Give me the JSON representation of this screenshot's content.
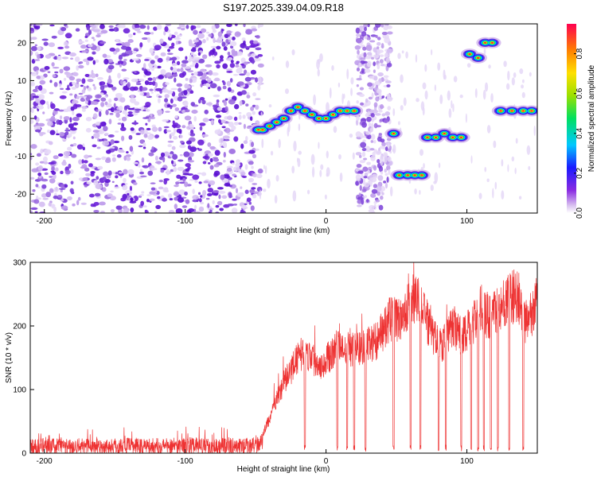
{
  "title": "S197.2025.339.04.09.R18",
  "chart_data": [
    {
      "type": "heatmap",
      "title": "S197.2025.339.04.09.R18",
      "xlabel": "Height of straight line (km)",
      "ylabel": "Frequency (Hz)",
      "xlim": [
        -210,
        150
      ],
      "ylim": [
        -25,
        25
      ],
      "xticks": [
        -200,
        -100,
        0,
        100
      ],
      "xtick_labels": [
        "-200",
        "-100",
        "0",
        "100"
      ],
      "yticks": [
        -20,
        -10,
        0,
        10,
        20
      ],
      "ytick_labels": [
        "-20",
        "-10",
        "0",
        "10",
        "20"
      ],
      "colorbar": {
        "label": "Normalized spectral amplitude",
        "range": [
          0,
          0.95
        ],
        "ticks": [
          0.0,
          0.2,
          0.4,
          0.6,
          0.8
        ],
        "tick_labels": [
          "0.0",
          "0.2",
          "0.4",
          "0.6",
          "0.8"
        ]
      },
      "noise_region_km": [
        -210,
        -50
      ],
      "tone_track": [
        {
          "km": -48,
          "hz": -3
        },
        {
          "km": -45,
          "hz": -3
        },
        {
          "km": -40,
          "hz": -2
        },
        {
          "km": -35,
          "hz": -1
        },
        {
          "km": -30,
          "hz": 0
        },
        {
          "km": -25,
          "hz": 2
        },
        {
          "km": -20,
          "hz": 3
        },
        {
          "km": -15,
          "hz": 2
        },
        {
          "km": -10,
          "hz": 1
        },
        {
          "km": -5,
          "hz": 0
        },
        {
          "km": 0,
          "hz": 0
        },
        {
          "km": 5,
          "hz": 1
        },
        {
          "km": 10,
          "hz": 2
        },
        {
          "km": 15,
          "hz": 2
        },
        {
          "km": 20,
          "hz": 2
        },
        {
          "km": 48,
          "hz": -4
        },
        {
          "km": 52,
          "hz": -15
        },
        {
          "km": 58,
          "hz": -15
        },
        {
          "km": 63,
          "hz": -15
        },
        {
          "km": 68,
          "hz": -15
        },
        {
          "km": 72,
          "hz": -5
        },
        {
          "km": 78,
          "hz": -5
        },
        {
          "km": 84,
          "hz": -4
        },
        {
          "km": 90,
          "hz": -5
        },
        {
          "km": 96,
          "hz": -5
        },
        {
          "km": 102,
          "hz": 17
        },
        {
          "km": 108,
          "hz": 16
        },
        {
          "km": 113,
          "hz": 20
        },
        {
          "km": 118,
          "hz": 20
        },
        {
          "km": 124,
          "hz": 2
        },
        {
          "km": 132,
          "hz": 2
        },
        {
          "km": 140,
          "hz": 2
        },
        {
          "km": 146,
          "hz": 2
        }
      ]
    },
    {
      "type": "line",
      "xlabel": "Height of straight line (km)",
      "ylabel": "SNR (10 * v/v)",
      "xlim": [
        -210,
        150
      ],
      "ylim": [
        0,
        300
      ],
      "xticks": [
        -200,
        -100,
        0,
        100
      ],
      "xtick_labels": [
        "-200",
        "-100",
        "0",
        "100"
      ],
      "yticks": [
        0,
        100,
        200,
        300
      ],
      "ytick_labels": [
        "0",
        "100",
        "200",
        "300"
      ],
      "series": [
        {
          "name": "SNR",
          "color": "#ee3333",
          "x": [
            -210,
            -200,
            -180,
            -160,
            -140,
            -120,
            -100,
            -80,
            -60,
            -50,
            -45,
            -40,
            -35,
            -30,
            -25,
            -20,
            -15,
            -10,
            -5,
            0,
            5,
            10,
            15,
            20,
            25,
            30,
            35,
            40,
            45,
            50,
            55,
            60,
            65,
            70,
            75,
            80,
            85,
            90,
            95,
            100,
            105,
            110,
            115,
            120,
            125,
            130,
            135,
            140,
            145,
            150
          ],
          "y": [
            15,
            18,
            18,
            17,
            19,
            18,
            20,
            18,
            18,
            20,
            30,
            55,
            85,
            110,
            130,
            150,
            160,
            150,
            140,
            145,
            160,
            175,
            170,
            160,
            165,
            170,
            175,
            190,
            210,
            210,
            205,
            245,
            240,
            220,
            185,
            170,
            175,
            200,
            185,
            190,
            205,
            230,
            215,
            220,
            235,
            240,
            250,
            205,
            215,
            240
          ]
        }
      ],
      "dropouts_km": [
        -15,
        8,
        15,
        20,
        28,
        48,
        60,
        67,
        80,
        85,
        96,
        103,
        108,
        112,
        117,
        122,
        130,
        140
      ]
    }
  ]
}
